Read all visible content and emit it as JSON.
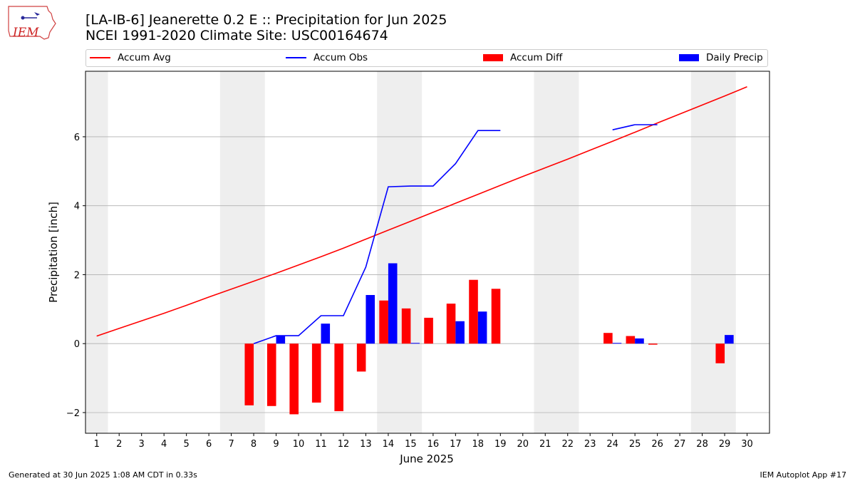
{
  "header": {
    "title_line1": "[LA-IB-6] Jeanerette 0.2 E :: Precipitation for Jun 2025",
    "title_line2": "NCEI 1991-2020 Climate Site: USC00164674",
    "logo_text": "IEM"
  },
  "footer": {
    "left": "Generated at 30 Jun 2025 1:08 AM CDT in 0.33s",
    "right": "IEM Autoplot App #17"
  },
  "colors": {
    "accum_avg": "#ff0000",
    "accum_obs": "#0000ff",
    "accum_diff": "#ff0000",
    "daily_precip": "#0000ff",
    "weekend_shade": "#eeeeee",
    "grid": "#b0b0b0"
  },
  "chart_data": {
    "type": "bar",
    "title": "[LA-IB-6] Jeanerette 0.2 E :: Precipitation for Jun 2025",
    "xlabel": "June 2025",
    "ylabel": "Precipitation [inch]",
    "xlim": [
      0.5,
      31.0
    ],
    "ylim": [
      -2.6,
      7.9
    ],
    "x_ticks": [
      1,
      2,
      3,
      4,
      5,
      6,
      7,
      8,
      9,
      10,
      11,
      12,
      13,
      14,
      15,
      16,
      17,
      18,
      19,
      20,
      21,
      22,
      23,
      24,
      25,
      26,
      27,
      28,
      29,
      30
    ],
    "y_ticks": [
      -2,
      0,
      2,
      4,
      6
    ],
    "grid": "horizontal",
    "legend_position": "top",
    "shaded_days": [
      [
        0.5,
        1.5
      ],
      [
        6.5,
        8.5
      ],
      [
        13.5,
        15.5
      ],
      [
        20.5,
        22.5
      ],
      [
        27.5,
        29.5
      ]
    ],
    "series": [
      {
        "name": "Accum Avg",
        "type": "line",
        "x": [
          1,
          2,
          3,
          4,
          5,
          6,
          7,
          8,
          9,
          10,
          11,
          12,
          13,
          14,
          15,
          16,
          17,
          18,
          19,
          20,
          21,
          22,
          23,
          24,
          25,
          26,
          27,
          28,
          29,
          30
        ],
        "values": [
          0.22,
          0.44,
          0.66,
          0.88,
          1.11,
          1.35,
          1.58,
          1.81,
          2.04,
          2.28,
          2.52,
          2.77,
          3.03,
          3.29,
          3.55,
          3.81,
          4.07,
          4.33,
          4.59,
          4.85,
          5.1,
          5.35,
          5.61,
          5.87,
          6.13,
          6.4,
          6.66,
          6.92,
          7.18,
          7.45
        ]
      },
      {
        "name": "Accum Obs",
        "type": "line",
        "x": [
          8,
          9,
          10,
          11,
          12,
          13,
          14,
          15,
          16,
          17,
          18,
          19,
          20,
          21,
          22,
          23,
          24,
          25,
          26
        ],
        "values": [
          0.0,
          0.23,
          0.23,
          0.81,
          0.81,
          2.22,
          4.55,
          4.57,
          4.57,
          5.22,
          6.18,
          6.18,
          null,
          null,
          null,
          null,
          6.2,
          6.35,
          6.35
        ]
      },
      {
        "name": "Accum Diff",
        "type": "bar",
        "x": [
          8,
          9,
          10,
          11,
          12,
          13,
          14,
          15,
          16,
          17,
          18,
          19,
          24,
          25,
          26,
          29
        ],
        "values": [
          -1.79,
          -1.81,
          -2.05,
          -1.71,
          -1.96,
          -0.81,
          1.25,
          1.02,
          0.75,
          1.16,
          1.85,
          1.59,
          0.31,
          0.22,
          -0.03,
          -0.57
        ]
      },
      {
        "name": "Daily Precip",
        "type": "bar",
        "x": [
          9,
          11,
          13,
          14,
          15,
          17,
          18,
          24,
          25,
          29
        ],
        "values": [
          0.23,
          0.58,
          1.41,
          2.33,
          0.02,
          0.65,
          0.93,
          0.02,
          0.15,
          0.25
        ]
      }
    ]
  }
}
